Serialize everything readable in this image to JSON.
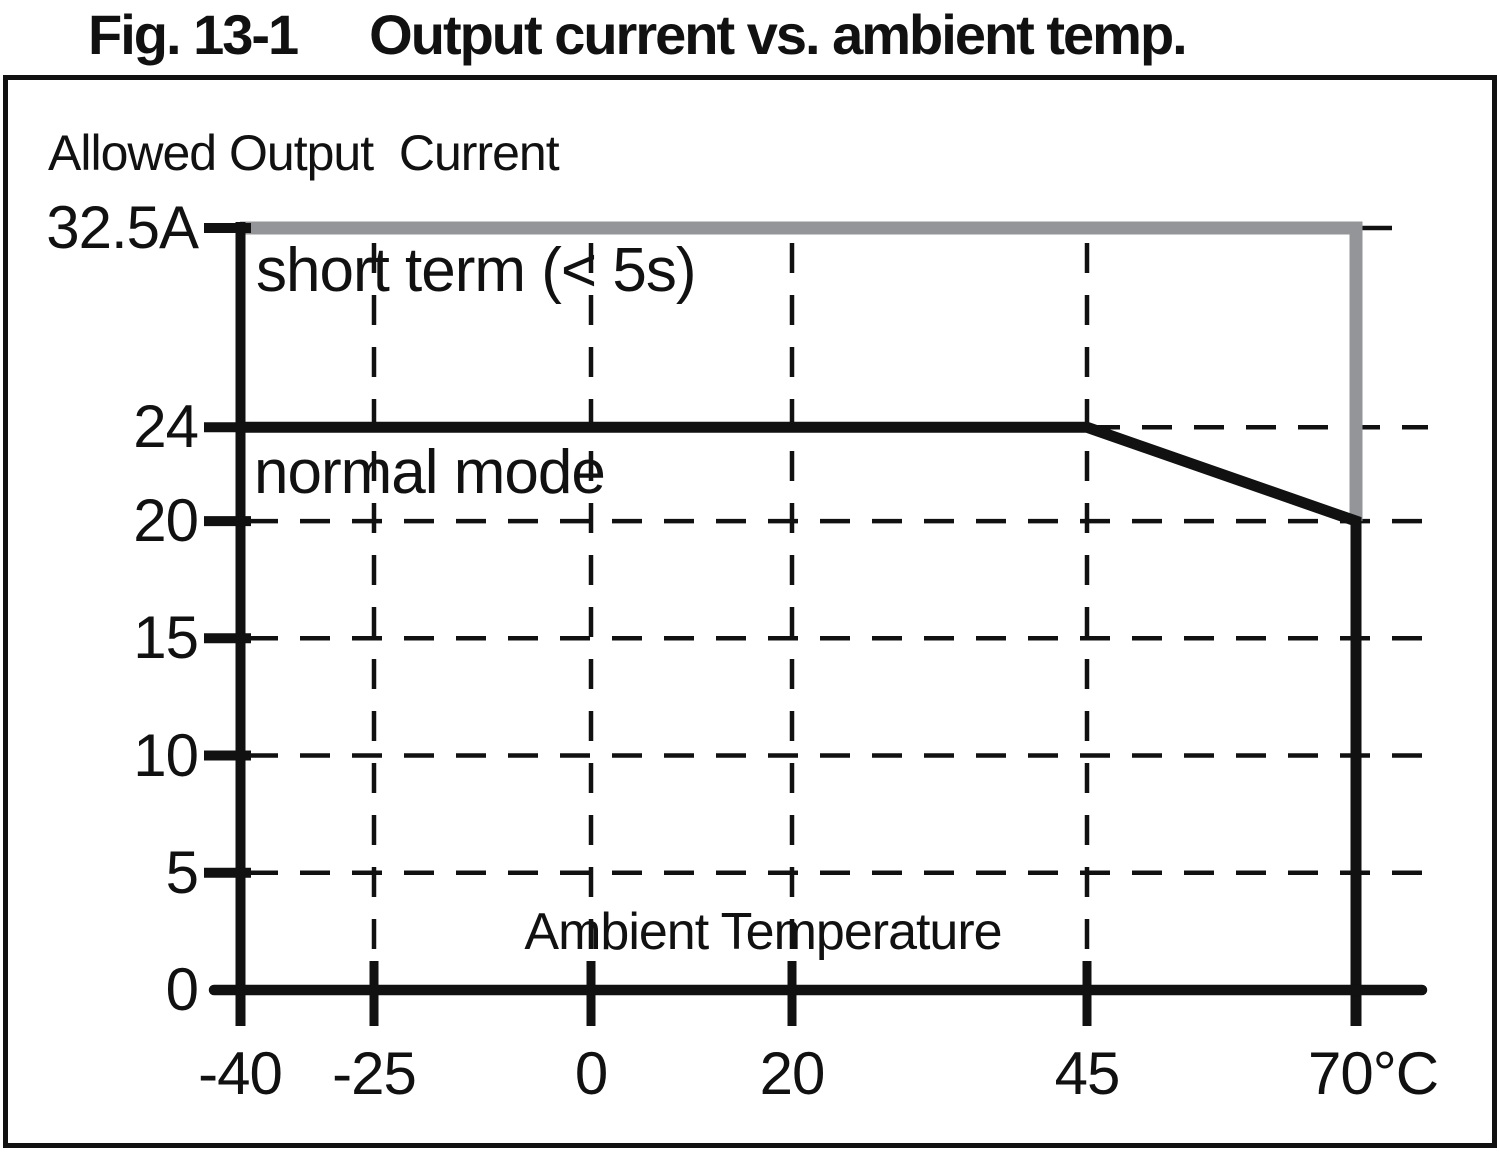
{
  "figure": {
    "title_prefix": "Fig. 13-1",
    "title_main": "Output current vs. ambient temp."
  },
  "chart_data": {
    "type": "line",
    "title": "Fig. 13-1 Output current vs. ambient temp.",
    "ylabel": "Allowed Output  Current",
    "xlabel": "Ambient Temperature",
    "x_unit": "°C",
    "y_unit": "A",
    "xlim": [
      -40,
      75
    ],
    "ylim": [
      0,
      32.5
    ],
    "grid": {
      "style": "dashed",
      "vertical_dashed_at": [
        -25,
        0,
        20,
        45
      ],
      "horizontal_dashed_at": [
        5,
        10,
        15,
        20,
        24,
        32.5
      ]
    },
    "x_ticks": [
      {
        "value": -40,
        "label": "-40"
      },
      {
        "value": -25,
        "label": "-25"
      },
      {
        "value": 0,
        "label": "0"
      },
      {
        "value": 20,
        "label": "20"
      },
      {
        "value": 45,
        "label": "45"
      },
      {
        "value": 70,
        "label": "70°C"
      }
    ],
    "y_ticks": [
      {
        "value": 0,
        "label": "0"
      },
      {
        "value": 5,
        "label": "5"
      },
      {
        "value": 10,
        "label": "10"
      },
      {
        "value": 15,
        "label": "15"
      },
      {
        "value": 20,
        "label": "20"
      },
      {
        "value": 24,
        "label": "24"
      },
      {
        "value": 32.5,
        "label": "32.5A"
      }
    ],
    "series": [
      {
        "name": "short term (< 5s)",
        "color": "#939598",
        "points": [
          [
            -40,
            32.5
          ],
          [
            70,
            32.5
          ],
          [
            70,
            20
          ]
        ]
      },
      {
        "name": "normal mode",
        "color": "#111111",
        "points": [
          [
            -40,
            24
          ],
          [
            45,
            24
          ],
          [
            70,
            20
          ],
          [
            70,
            0
          ]
        ]
      }
    ],
    "axis_color": "#111111",
    "legend_position": "none"
  }
}
